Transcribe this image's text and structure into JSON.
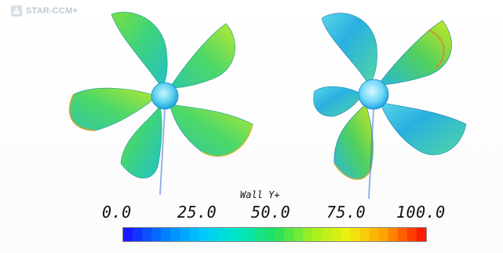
{
  "app": {
    "logo_text": "STAR-CCM+"
  },
  "legend": {
    "title": "Wall Y+",
    "ticks": [
      "0.0",
      "25.0",
      "50.0",
      "75.0",
      "100.0"
    ],
    "min": 0.0,
    "max": 100.0,
    "color_stops": [
      "#1a1aff",
      "#0080ff",
      "#00c8ff",
      "#00e8c8",
      "#20e060",
      "#a0f020",
      "#f0f010",
      "#ffa000",
      "#ff1a00"
    ]
  },
  "views": [
    {
      "accent": "#44d860"
    },
    {
      "accent": "#29b8e8"
    }
  ]
}
